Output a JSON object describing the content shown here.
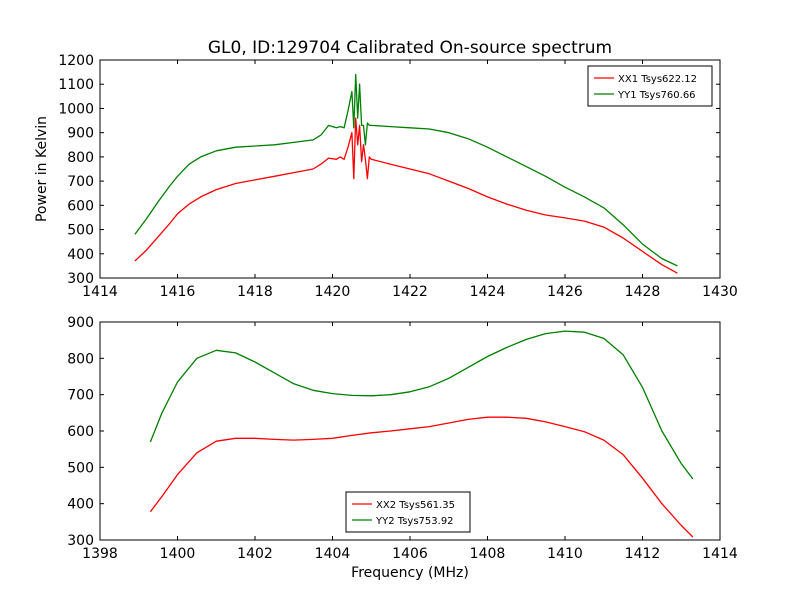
{
  "figure": {
    "title": "GL0, ID:129704 Calibrated On-source spectrum",
    "xlabel": "Frequency (MHz)",
    "ylabel": "Power in Kelvin"
  },
  "chart_data": [
    {
      "type": "line",
      "title": "GL0, ID:129704 Calibrated On-source spectrum",
      "xlabel": "",
      "ylabel": "Power in Kelvin",
      "xlim": [
        1414,
        1430
      ],
      "ylim": [
        300,
        1200
      ],
      "xticks": [
        1414,
        1416,
        1418,
        1420,
        1422,
        1424,
        1426,
        1428,
        1430
      ],
      "yticks": [
        300,
        400,
        500,
        600,
        700,
        800,
        900,
        1000,
        1100,
        1200
      ],
      "grid": false,
      "legend_position": "top-right",
      "colors": [
        "#ff0000",
        "#008000"
      ],
      "series": [
        {
          "name": "XX1 Tsys622.12",
          "color": "#ff0000",
          "x": [
            1414.9,
            1415.2,
            1415.5,
            1415.8,
            1416.0,
            1416.3,
            1416.6,
            1417.0,
            1417.5,
            1418.0,
            1418.5,
            1419.0,
            1419.5,
            1419.7,
            1419.9,
            1420.1,
            1420.2,
            1420.3,
            1420.4,
            1420.5,
            1420.55,
            1420.6,
            1420.65,
            1420.7,
            1420.75,
            1420.8,
            1420.85,
            1420.9,
            1420.95,
            1421.0,
            1421.5,
            1422.0,
            1422.5,
            1423.0,
            1423.5,
            1424.0,
            1424.5,
            1425.0,
            1425.5,
            1426.0,
            1426.5,
            1427.0,
            1427.5,
            1428.0,
            1428.5,
            1428.9
          ],
          "values": [
            370,
            415,
            470,
            525,
            565,
            605,
            635,
            665,
            690,
            705,
            720,
            735,
            750,
            770,
            795,
            790,
            800,
            790,
            840,
            900,
            710,
            960,
            850,
            930,
            780,
            850,
            790,
            710,
            800,
            790,
            770,
            750,
            730,
            700,
            670,
            635,
            605,
            580,
            560,
            548,
            535,
            510,
            465,
            410,
            355,
            320
          ]
        },
        {
          "name": "YY1 Tsys760.66",
          "color": "#008000",
          "x": [
            1414.9,
            1415.2,
            1415.5,
            1415.8,
            1416.0,
            1416.3,
            1416.6,
            1417.0,
            1417.5,
            1418.0,
            1418.5,
            1419.0,
            1419.5,
            1419.7,
            1419.9,
            1420.1,
            1420.2,
            1420.3,
            1420.4,
            1420.5,
            1420.55,
            1420.6,
            1420.65,
            1420.7,
            1420.75,
            1420.8,
            1420.85,
            1420.9,
            1420.95,
            1421.0,
            1421.5,
            1422.0,
            1422.5,
            1423.0,
            1423.5,
            1424.0,
            1424.5,
            1425.0,
            1425.5,
            1426.0,
            1426.5,
            1427.0,
            1427.5,
            1428.0,
            1428.5,
            1428.9
          ],
          "values": [
            480,
            545,
            615,
            680,
            720,
            770,
            800,
            825,
            840,
            845,
            850,
            860,
            870,
            890,
            930,
            920,
            925,
            920,
            990,
            1070,
            920,
            1140,
            960,
            1100,
            930,
            930,
            850,
            940,
            930,
            930,
            925,
            920,
            915,
            900,
            875,
            840,
            800,
            760,
            720,
            675,
            635,
            590,
            520,
            440,
            380,
            350
          ]
        }
      ]
    },
    {
      "type": "line",
      "title": "",
      "xlabel": "Frequency (MHz)",
      "ylabel": "",
      "xlim": [
        1398,
        1414
      ],
      "ylim": [
        300,
        900
      ],
      "xticks": [
        1398,
        1400,
        1402,
        1404,
        1406,
        1408,
        1410,
        1412,
        1414
      ],
      "yticks": [
        300,
        400,
        500,
        600,
        700,
        800,
        900
      ],
      "grid": false,
      "legend_position": "bottom-center",
      "colors": [
        "#ff0000",
        "#008000"
      ],
      "series": [
        {
          "name": "XX2 Tsys561.35",
          "color": "#ff0000",
          "x": [
            1399.3,
            1399.6,
            1400.0,
            1400.5,
            1401.0,
            1401.5,
            1402.0,
            1402.5,
            1403.0,
            1403.5,
            1404.0,
            1404.5,
            1405.0,
            1405.5,
            1406.0,
            1406.5,
            1407.0,
            1407.5,
            1408.0,
            1408.5,
            1409.0,
            1409.5,
            1410.0,
            1410.5,
            1411.0,
            1411.5,
            1412.0,
            1412.5,
            1413.0,
            1413.3
          ],
          "values": [
            378,
            420,
            480,
            540,
            572,
            580,
            580,
            577,
            575,
            577,
            580,
            588,
            595,
            600,
            606,
            612,
            622,
            632,
            638,
            638,
            635,
            625,
            612,
            598,
            575,
            535,
            470,
            400,
            340,
            308
          ]
        },
        {
          "name": "YY2 Tsys753.92",
          "color": "#008000",
          "x": [
            1399.3,
            1399.6,
            1400.0,
            1400.5,
            1401.0,
            1401.5,
            1402.0,
            1402.5,
            1403.0,
            1403.5,
            1404.0,
            1404.5,
            1405.0,
            1405.5,
            1406.0,
            1406.5,
            1407.0,
            1407.5,
            1408.0,
            1408.5,
            1409.0,
            1409.5,
            1410.0,
            1410.5,
            1411.0,
            1411.5,
            1412.0,
            1412.5,
            1413.0,
            1413.3
          ],
          "values": [
            570,
            650,
            735,
            800,
            822,
            815,
            790,
            760,
            730,
            712,
            703,
            698,
            697,
            700,
            708,
            722,
            745,
            775,
            805,
            830,
            852,
            868,
            875,
            872,
            855,
            810,
            720,
            600,
            510,
            468
          ]
        }
      ]
    }
  ]
}
